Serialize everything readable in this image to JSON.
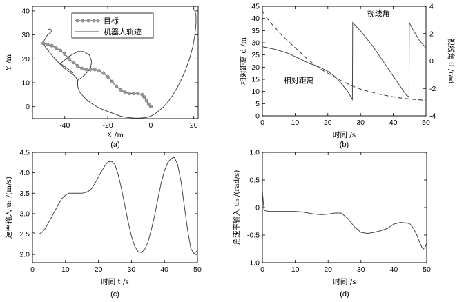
{
  "chart_data": [
    {
      "id": "a",
      "type": "line",
      "caption": "(a)",
      "xlabel": "X /m",
      "ylabel": "Y /m",
      "xlim": [
        -55,
        22
      ],
      "ylim": [
        -5,
        42
      ],
      "xticks": [
        -40,
        -20,
        0,
        20
      ],
      "yticks": [
        0,
        10,
        20,
        30,
        40
      ],
      "legend_position": "top-center",
      "series": [
        {
          "name": "目标",
          "style": "line-with-markers",
          "color": "#777777",
          "x": [
            0,
            -1,
            -2,
            -3,
            -4,
            -6,
            -8,
            -10,
            -12,
            -14,
            -16,
            -18,
            -20,
            -22,
            -24,
            -26,
            -28,
            -30,
            -32,
            -34,
            -36,
            -38,
            -40,
            -42,
            -44,
            -46,
            -48,
            -50
          ],
          "y": [
            0,
            1,
            2.5,
            4,
            5,
            5.5,
            5.5,
            5.5,
            6,
            7,
            8.5,
            10.5,
            12.5,
            14,
            15,
            15.5,
            15.5,
            15.5,
            16,
            17,
            18.5,
            20,
            22,
            23.5,
            24.5,
            25.5,
            26,
            26.5
          ]
        },
        {
          "name": "机器人轨迹",
          "style": "line",
          "color": "#444444",
          "x": [
            -48,
            -47,
            -46,
            -46.5,
            -48,
            -50,
            -49,
            -46,
            -43,
            -40,
            -37,
            -35,
            -34,
            -34,
            -33,
            -30,
            -27,
            -24,
            -20,
            -17,
            -14,
            -11,
            -8,
            -5,
            -2,
            0,
            2,
            4,
            6,
            8,
            10,
            12,
            14,
            16,
            18,
            19.5,
            20.5,
            21,
            21,
            20.5,
            20,
            19.5
          ],
          "y": [
            32,
            32.5,
            32,
            31,
            30,
            27,
            25,
            21.5,
            18.5,
            16,
            14,
            12.5,
            11,
            8.5,
            6,
            3,
            1,
            -0.5,
            -2,
            -3,
            -4,
            -4.5,
            -4.8,
            -4.8,
            -4.5,
            -4,
            -3,
            -1.5,
            0,
            2,
            4.5,
            7.5,
            11,
            15,
            20,
            25,
            30,
            35,
            38,
            40,
            40.5,
            41
          ]
        },
        {
          "name": "",
          "style": "line",
          "color": "#444444",
          "note_ignore": "",
          "x": [
            -34,
            -31,
            -28,
            -27.5,
            -28.5,
            -31,
            -34,
            -38,
            -42,
            -38,
            -36
          ],
          "y": [
            11,
            13,
            16,
            19,
            21.5,
            23,
            23,
            21,
            18,
            15.5,
            14
          ]
        }
      ]
    },
    {
      "id": "b",
      "type": "line",
      "caption": "(b)",
      "xlabel": "时间 /s",
      "ylabel_left": "相对距离 d /m",
      "ylabel_right": "视线角 θ /rad",
      "xlim": [
        0,
        50
      ],
      "ylim_left": [
        0,
        45
      ],
      "ylim_right": [
        -4,
        4
      ],
      "xticks": [
        0,
        10,
        20,
        30,
        40,
        50
      ],
      "yticks_left": [
        0,
        5,
        10,
        15,
        20,
        25,
        30,
        35,
        40,
        45
      ],
      "yticks_right": [
        -4,
        -2,
        0,
        2,
        4
      ],
      "annotations": [
        {
          "text": "视线角",
          "at": [
            32,
            41
          ]
        },
        {
          "text": "相对距离",
          "at": [
            6.5,
            13.5
          ]
        }
      ],
      "series": [
        {
          "name": "相对距离",
          "axis": "left",
          "style": "dashed",
          "x": [
            0,
            2,
            4,
            6,
            8,
            10,
            12,
            14,
            16,
            18,
            20,
            22,
            24,
            26,
            28,
            30,
            32,
            34,
            36,
            38,
            40,
            42,
            44,
            46,
            48,
            50
          ],
          "y": [
            43,
            39,
            36,
            33,
            30.5,
            28,
            25.5,
            23,
            21,
            19,
            17.5,
            16,
            14.5,
            13.2,
            12,
            11,
            10.2,
            9.5,
            8.8,
            8.3,
            7.8,
            7.4,
            7.1,
            6.8,
            6.6,
            6.4
          ]
        },
        {
          "name": "视线角",
          "axis": "right",
          "style": "line",
          "x": [
            0,
            4,
            8,
            12,
            14,
            16,
            18,
            20,
            22,
            24,
            26,
            27.5,
            27.6,
            30,
            32,
            34,
            36,
            38,
            40,
            42,
            44,
            44.8,
            44.9,
            46,
            48,
            50
          ],
          "y": [
            1.05,
            0.85,
            0.55,
            0.1,
            -0.15,
            -0.3,
            -0.5,
            -0.75,
            -1.1,
            -1.6,
            -2.2,
            -2.8,
            2.8,
            2.2,
            1.6,
            1.0,
            0.3,
            -0.4,
            -1.1,
            -1.8,
            -2.5,
            -2.6,
            2.8,
            2.3,
            1.5,
            0.95
          ]
        }
      ]
    },
    {
      "id": "c",
      "type": "line",
      "caption": "(c)",
      "xlabel": "时间 t /s",
      "ylabel": "速率输入 u₁ /(m/s)",
      "xlim": [
        0,
        50
      ],
      "ylim": [
        1.8,
        4.5
      ],
      "xticks": [
        0,
        10,
        20,
        30,
        40,
        50
      ],
      "yticks": [
        2.0,
        2.5,
        3.0,
        3.5,
        4.0,
        4.5
      ],
      "series": [
        {
          "name": "",
          "style": "line",
          "x": [
            0,
            1,
            2,
            3,
            4,
            5,
            6,
            7,
            8,
            9,
            10,
            11,
            12,
            13,
            14,
            15,
            16,
            17,
            18,
            19,
            20,
            21,
            22,
            23,
            24,
            25,
            26,
            27,
            28,
            29,
            30,
            31,
            32,
            33,
            34,
            35,
            36,
            37,
            38,
            39,
            40,
            41,
            42,
            43,
            44,
            45,
            46,
            47,
            48,
            49,
            50
          ],
          "y": [
            2.55,
            2.5,
            2.5,
            2.55,
            2.65,
            2.8,
            2.95,
            3.1,
            3.25,
            3.38,
            3.45,
            3.5,
            3.5,
            3.5,
            3.5,
            3.5,
            3.52,
            3.55,
            3.62,
            3.75,
            3.9,
            4.05,
            4.18,
            4.27,
            4.28,
            4.2,
            3.95,
            3.6,
            3.2,
            2.8,
            2.45,
            2.2,
            2.07,
            2.05,
            2.12,
            2.3,
            2.6,
            2.95,
            3.35,
            3.75,
            4.05,
            4.25,
            4.35,
            4.38,
            4.2,
            3.8,
            3.2,
            2.6,
            2.15,
            2.02,
            2.1
          ]
        }
      ]
    },
    {
      "id": "d",
      "type": "line",
      "caption": "(d)",
      "xlabel": "时间 /s",
      "ylabel": "角速率输入 u₂ /(rad/s)",
      "xlim": [
        0,
        50
      ],
      "ylim": [
        -1.0,
        1.0
      ],
      "xticks": [
        0,
        10,
        20,
        30,
        40,
        50
      ],
      "yticks": [
        -1.0,
        -0.5,
        0,
        0.5,
        1.0
      ],
      "series": [
        {
          "name": "",
          "style": "line",
          "x": [
            0,
            0.2,
            0.5,
            1,
            2,
            4,
            6,
            8,
            10,
            12,
            14,
            16,
            18,
            20,
            22,
            24,
            26,
            28,
            30,
            32,
            34,
            36,
            38,
            40,
            42,
            44,
            45,
            46,
            47,
            48,
            48.5,
            49,
            49.5,
            50
          ],
          "y": [
            0.3,
            0.15,
            -0.05,
            -0.06,
            -0.07,
            -0.07,
            -0.07,
            -0.07,
            -0.07,
            -0.08,
            -0.1,
            -0.12,
            -0.13,
            -0.12,
            -0.1,
            -0.1,
            -0.2,
            -0.35,
            -0.45,
            -0.47,
            -0.45,
            -0.42,
            -0.38,
            -0.3,
            -0.27,
            -0.28,
            -0.3,
            -0.38,
            -0.5,
            -0.65,
            -0.72,
            -0.75,
            -0.72,
            -0.65
          ]
        }
      ]
    }
  ]
}
